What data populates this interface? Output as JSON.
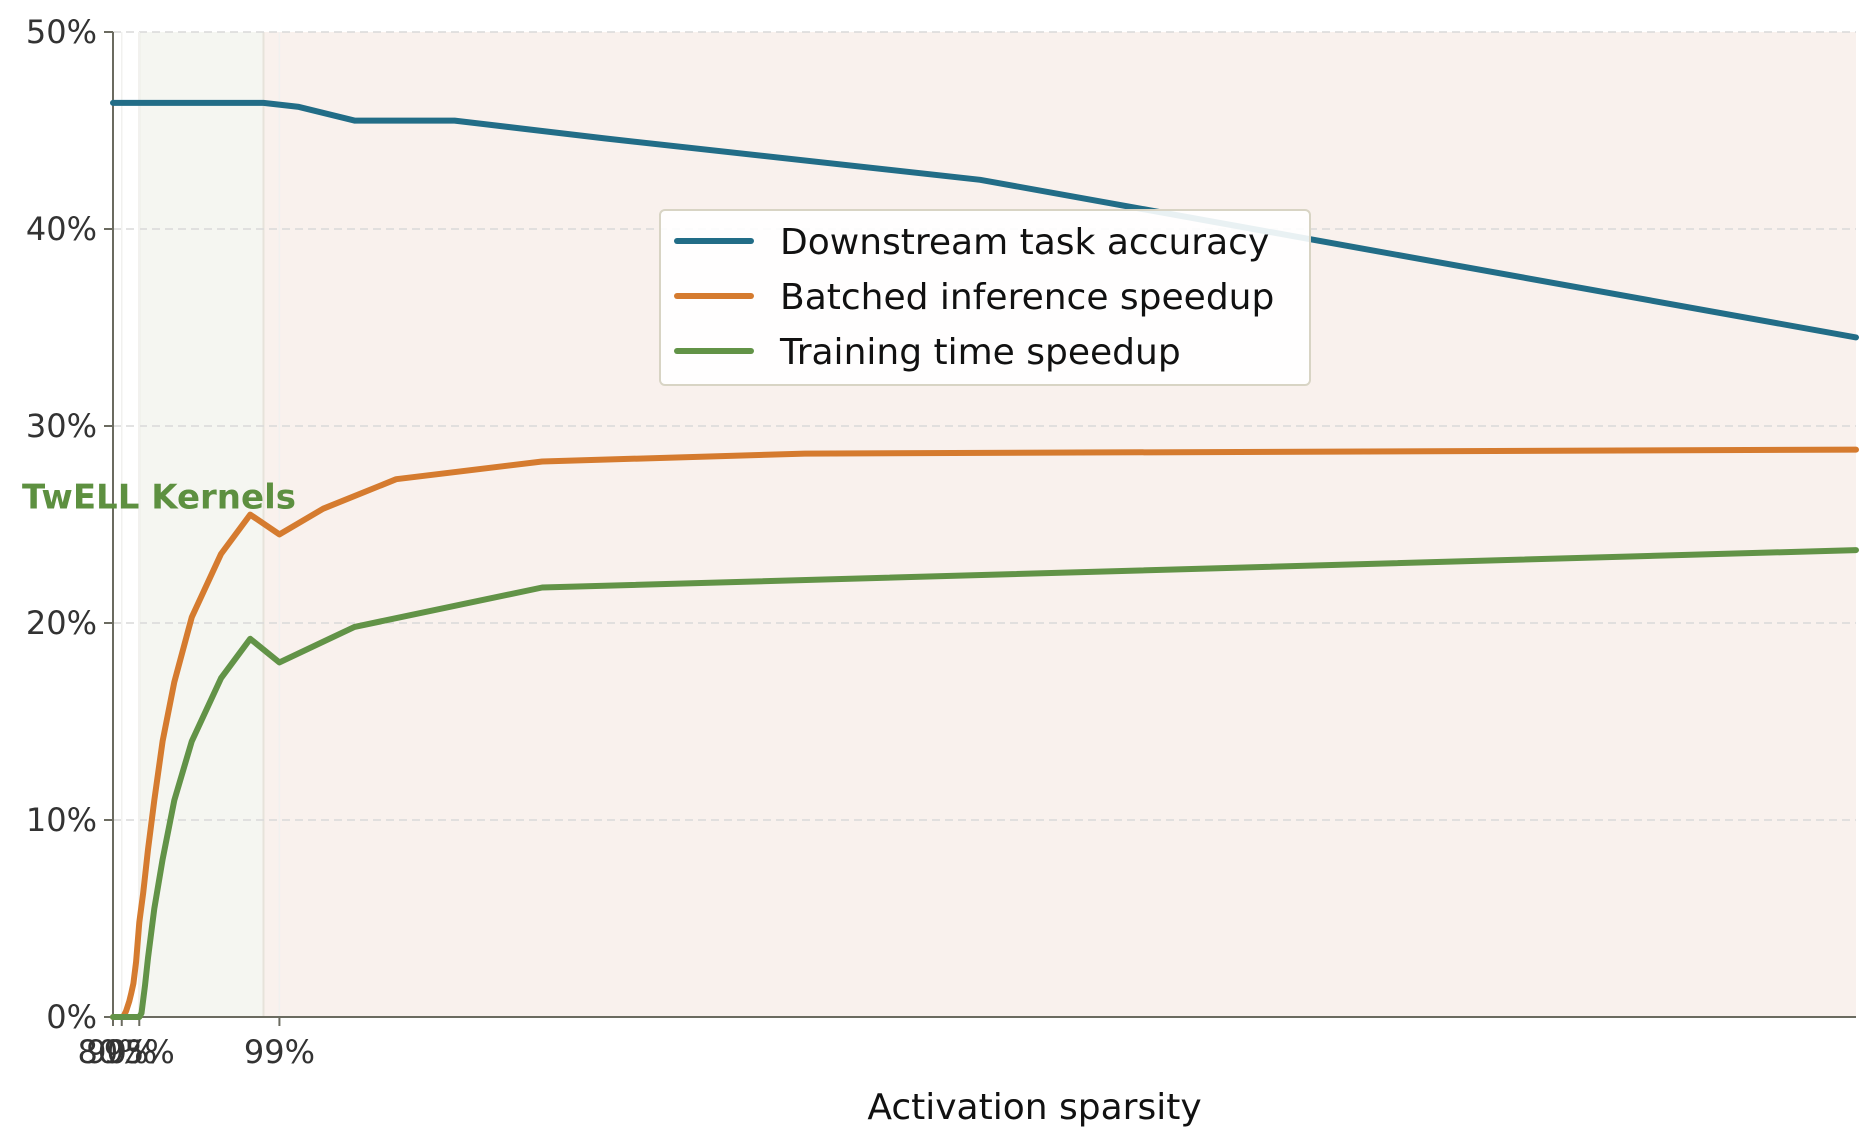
{
  "chart_data": {
    "type": "line",
    "xlabel": "Activation sparsity",
    "ylabel": "",
    "x_ticks": [
      "80%",
      "90%",
      "95%",
      "99%"
    ],
    "y_ticks": [
      "0%",
      "10%",
      "20%",
      "30%",
      "40%",
      "50%"
    ],
    "xlim": [
      80,
      99.9
    ],
    "x_scale": "reciprocal (1/(1-sparsity))",
    "ylim": [
      0,
      50
    ],
    "grid": "horizontal dashed",
    "legend": {
      "placement": "upper-center",
      "entries": [
        "Downstream task accuracy",
        "Batched inference speedup",
        "Training time speedup"
      ]
    },
    "shaded_regions": [
      {
        "from": 95,
        "to": 98.9,
        "color": "#f5f6f1"
      },
      {
        "from": 98.9,
        "to": 99.9,
        "color": "#f9f1ed"
      }
    ],
    "annotations": [
      {
        "text": "TwELL Kernels",
        "x": 96.8,
        "y": 25.8,
        "color": "#5d9040"
      }
    ],
    "series": [
      {
        "name": "Downstream task accuracy",
        "color": "#226d87",
        "points": [
          [
            80,
            46.4
          ],
          [
            95,
            46.4
          ],
          [
            98.9,
            46.4
          ],
          [
            99.1,
            46.2
          ],
          [
            99.3,
            45.5
          ],
          [
            99.5,
            45.5
          ],
          [
            99.65,
            44.6
          ],
          [
            99.8,
            42.5
          ],
          [
            99.9,
            34.5
          ]
        ]
      },
      {
        "name": "Batched inference speedup",
        "color": "#d57b2f",
        "points": [
          [
            80,
            0
          ],
          [
            90,
            0
          ],
          [
            91,
            0.05
          ],
          [
            92,
            0.3
          ],
          [
            93,
            0.8
          ],
          [
            93.5,
            1.2
          ],
          [
            94,
            1.7
          ],
          [
            94.5,
            2.8
          ],
          [
            95,
            4.8
          ],
          [
            95.5,
            6.3
          ],
          [
            96,
            8.5
          ],
          [
            96.5,
            11.0
          ],
          [
            97,
            14.0
          ],
          [
            97.5,
            17.0
          ],
          [
            98,
            20.3
          ],
          [
            98.5,
            23.5
          ],
          [
            98.8,
            25.5
          ],
          [
            99,
            24.5
          ],
          [
            99.2,
            25.8
          ],
          [
            99.4,
            27.3
          ],
          [
            99.6,
            28.2
          ],
          [
            99.75,
            28.6
          ],
          [
            99.9,
            28.8
          ]
        ]
      },
      {
        "name": "Training time speedup",
        "color": "#629347",
        "points": [
          [
            80,
            0
          ],
          [
            95,
            0
          ],
          [
            95.3,
            0.2
          ],
          [
            95.7,
            1.6
          ],
          [
            96,
            3.0
          ],
          [
            96.5,
            5.5
          ],
          [
            97,
            8.0
          ],
          [
            97.5,
            11.0
          ],
          [
            98,
            14.0
          ],
          [
            98.5,
            17.2
          ],
          [
            98.8,
            19.2
          ],
          [
            99,
            18.0
          ],
          [
            99.3,
            19.8
          ],
          [
            99.6,
            21.8
          ],
          [
            99.9,
            23.7
          ]
        ]
      }
    ]
  }
}
